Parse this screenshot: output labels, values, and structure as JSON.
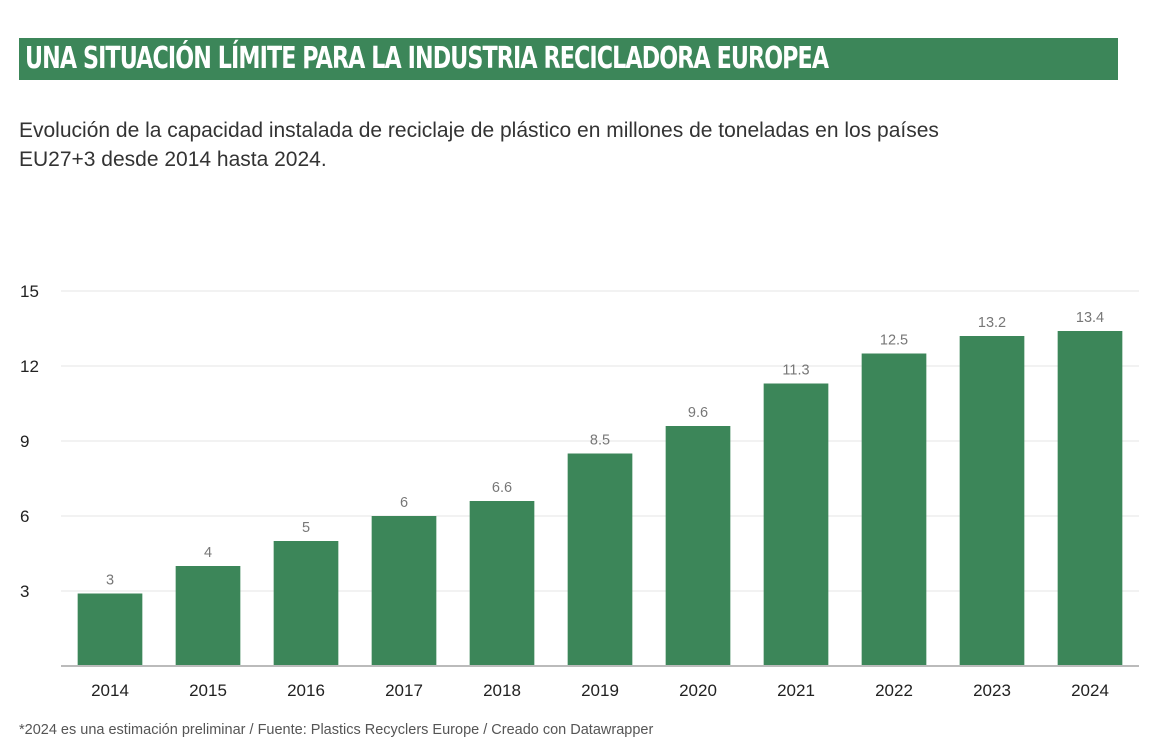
{
  "header": {
    "title": "UNA SITUACIÓN LÍMITE PARA LA INDUSTRIA RECICLADORA EUROPEA",
    "subtitle": "Evolución de la capacidad instalada de reciclaje de plástico en millones de toneladas en los países EU27+3 desde 2014 hasta 2024."
  },
  "footer": {
    "note": "*2024 es una estimación preliminar / Fuente: Plastics Recyclers Europe / Creado con Datawrapper"
  },
  "colors": {
    "bar": "#3c8659",
    "title_bg": "#3c8659",
    "gridline": "#e5e5e5",
    "baseline": "#bbbbbb",
    "data_label": "#777777"
  },
  "chart_data": {
    "type": "bar",
    "title": "UNA SITUACIÓN LÍMITE PARA LA INDUSTRIA RECICLADORA EUROPEA",
    "subtitle": "Evolución de la capacidad instalada de reciclaje de plástico en millones de toneladas en los países EU27+3 desde 2014 hasta 2024.",
    "xlabel": "",
    "ylabel": "",
    "categories": [
      "2014",
      "2015",
      "2016",
      "2017",
      "2018",
      "2019",
      "2020",
      "2021",
      "2022",
      "2023",
      "2024"
    ],
    "values": [
      2.9,
      4,
      5,
      6,
      6.6,
      8.5,
      9.6,
      11.3,
      12.5,
      13.2,
      13.4
    ],
    "data_labels": [
      "3",
      "4",
      "5",
      "6",
      "6.6",
      "8.5",
      "9.6",
      "11.3",
      "12.5",
      "13.2",
      "13.4"
    ],
    "ylim": [
      0,
      15
    ],
    "yticks": [
      3,
      6,
      9,
      12,
      15
    ],
    "ytick_labels": [
      "3",
      "6",
      "9",
      "12",
      "15"
    ],
    "grid": true,
    "legend": "none"
  }
}
